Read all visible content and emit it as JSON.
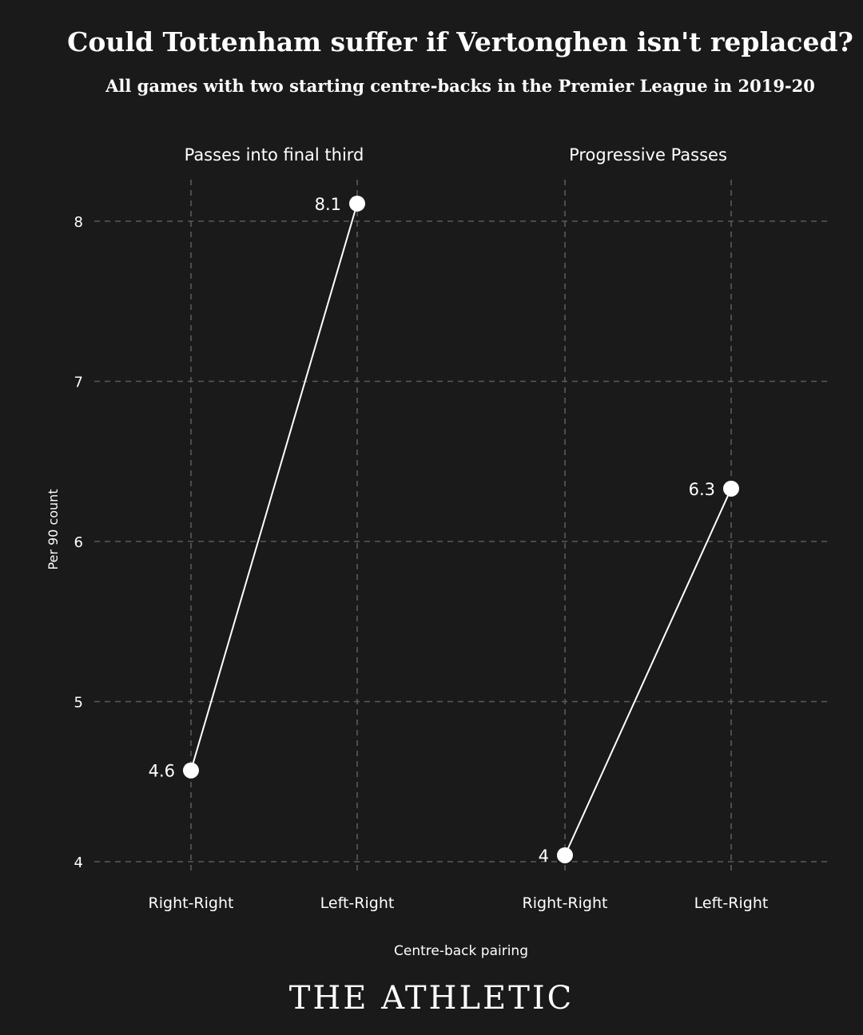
{
  "chart_data": {
    "type": "line",
    "title": "Could Tottenham suffer if Vertonghen isn't replaced?",
    "subtitle": "All games with two starting centre-backs in the Premier League in 2019-20",
    "xlabel": "Centre-back pairing",
    "ylabel": "Per 90 count",
    "ylim": [
      3.9,
      8.2
    ],
    "yticks": [
      4,
      5,
      6,
      7,
      8
    ],
    "grid": true,
    "panels": [
      {
        "title": "Passes into final third",
        "categories": [
          "Right-Right",
          "Left-Right"
        ],
        "values": [
          4.57,
          8.11
        ],
        "labels": [
          "4.6",
          "8.1"
        ]
      },
      {
        "title": "Progressive Passes",
        "categories": [
          "Right-Right",
          "Left-Right"
        ],
        "values": [
          4.04,
          6.33
        ],
        "labels": [
          "4",
          "6.3"
        ]
      }
    ]
  },
  "colors": {
    "background": "#1a1a1a",
    "foreground": "#ffffff",
    "grid": "#5a5a5a"
  },
  "branding": {
    "logo_text": "THE ATHLETIC"
  }
}
